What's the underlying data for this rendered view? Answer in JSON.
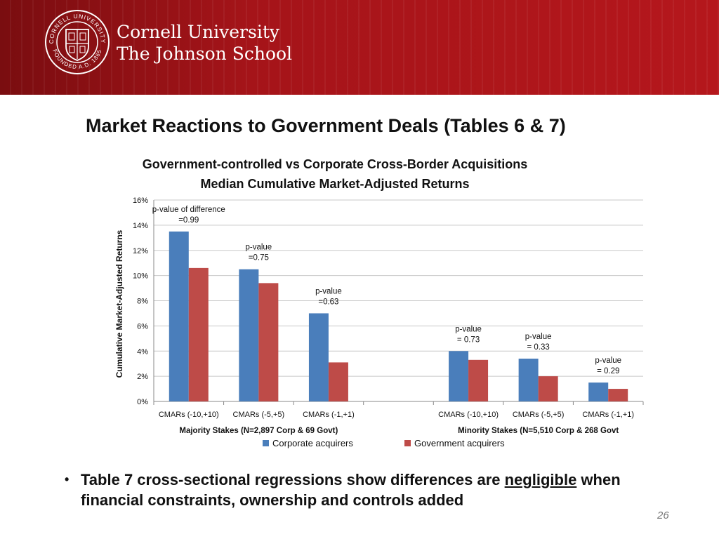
{
  "header": {
    "university": "Cornell University",
    "school": "The Johnson School",
    "seal_text_top": "CORNELL UNIVERSITY",
    "seal_text_bottom": "FOUNDED A.D. 1865",
    "banner_color": "#a51419"
  },
  "slide": {
    "title": "Market Reactions to Government Deals (Tables 6 & 7)",
    "bullet_before": "Table 7 cross-sectional regressions show differences are ",
    "bullet_emphasis": "negligible",
    "bullet_after": " when financial constraints, ownership and controls added",
    "page_number": "26"
  },
  "chart_data": {
    "type": "bar",
    "title": "Government-controlled vs Corporate Cross-Border Acquisitions",
    "subtitle": "Median Cumulative Market-Adjusted Returns",
    "ylabel": "Cumulative Market-Adjusted Returns",
    "ylim": [
      0,
      16
    ],
    "yticks": [
      "0%",
      "2%",
      "4%",
      "6%",
      "8%",
      "10%",
      "12%",
      "14%",
      "16%"
    ],
    "grid": true,
    "legend_position": "bottom",
    "categories": [
      "CMARs (-10,+10)",
      "CMARs (-5,+5)",
      "CMARs (-1,+1)",
      "",
      "CMARs (-10,+10)",
      "CMARs (-5,+5)",
      "CMARs (-1,+1)"
    ],
    "group_labels": [
      "Majority Stakes (N=2,897 Corp & 69 Govt)",
      "Minority Stakes (N=5,510 Corp & 268 Govt"
    ],
    "series": [
      {
        "name": "Corporate acquirers",
        "color": "#4a7ebb",
        "values": [
          13.5,
          10.5,
          7.0,
          null,
          4.0,
          3.4,
          1.5
        ]
      },
      {
        "name": "Government acquirers",
        "color": "#be4b48",
        "values": [
          10.6,
          9.4,
          3.1,
          null,
          3.3,
          2.0,
          1.0
        ]
      }
    ],
    "annotations": [
      {
        "category_index": 0,
        "line1": "p-value of difference",
        "line2": "=0.99"
      },
      {
        "category_index": 1,
        "line1": "p-value",
        "line2": "=0.75"
      },
      {
        "category_index": 2,
        "line1": "p-value",
        "line2": "=0.63"
      },
      {
        "category_index": 4,
        "line1": "p-value",
        "line2": "= 0.73"
      },
      {
        "category_index": 5,
        "line1": "p-value",
        "line2": "= 0.33"
      },
      {
        "category_index": 6,
        "line1": "p-value",
        "line2": "= 0.29"
      }
    ]
  }
}
